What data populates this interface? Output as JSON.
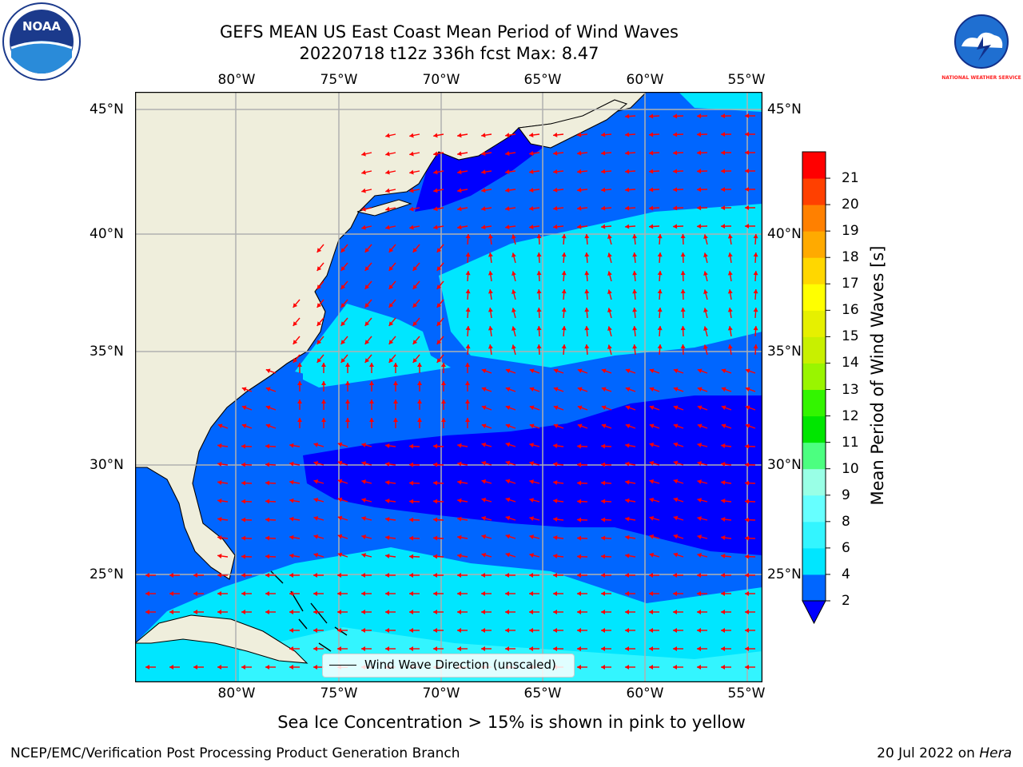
{
  "title_line1": "GEFS MEAN US East Coast Mean Period of Wind Waves",
  "title_line2": "20220718 t12z 336h fcst   Max: 8.47",
  "lon_labels": [
    "80°W",
    "75°W",
    "70°W",
    "65°W",
    "60°W",
    "55°W"
  ],
  "lat_labels": [
    "45°N",
    "40°N",
    "35°N",
    "30°N",
    "25°N"
  ],
  "colorbar": {
    "label": "Mean Period of Wind Waves [s]",
    "ticks": [
      "2",
      "4",
      "6",
      "8",
      "9",
      "10",
      "11",
      "12",
      "13",
      "14",
      "15",
      "16",
      "17",
      "18",
      "19",
      "20",
      "21"
    ],
    "colors": [
      "#0066ff",
      "#00e6ff",
      "#33f5ff",
      "#66ffff",
      "#99ffe6",
      "#4cff80",
      "#00e600",
      "#33f500",
      "#99f500",
      "#c8f000",
      "#e6f000",
      "#ffff00",
      "#ffd700",
      "#ffaa00",
      "#ff8000",
      "#ff4000",
      "#ff0000"
    ],
    "extend_color": "#0000ff"
  },
  "legend": {
    "text": "Wind Wave Direction (unscaled)"
  },
  "sea_ice_note": "Sea Ice Concentration > 15% is shown in pink to yellow",
  "footer": {
    "left": "NCEP/EMC/Verification Post Processing Product Generation Branch",
    "right_date": "20 Jul 2022 on ",
    "right_host": "Hera"
  },
  "logos": {
    "left": "NOAA",
    "right": "NATIONAL WEATHER SERVICE"
  },
  "map_colors": {
    "land": "#efeedc",
    "grid": "#b0b0b0",
    "arrow": "#ff0000",
    "wave_2_4": "#0066ff",
    "wave_4_6": "#00e6ff",
    "wave_6_8": "#33f5ff",
    "wave_lt2": "#0000ff"
  }
}
